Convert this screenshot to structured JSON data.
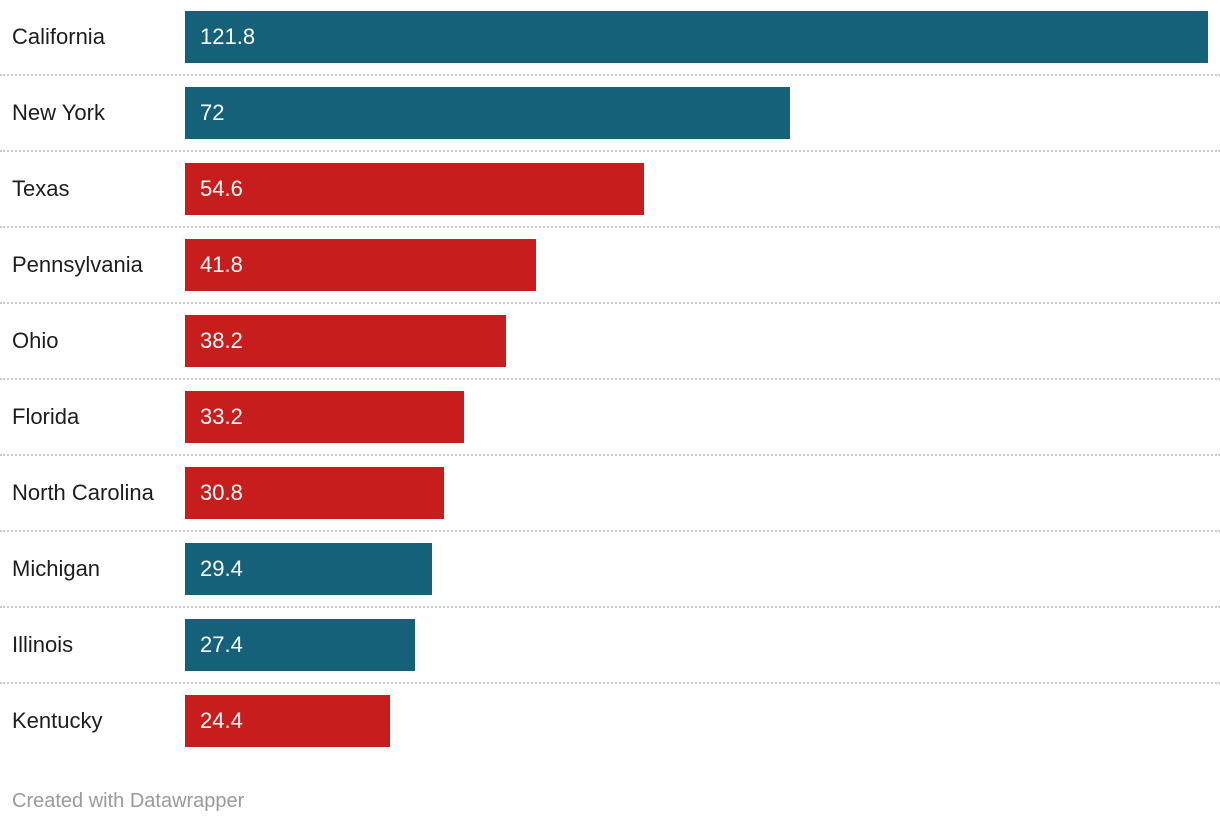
{
  "footer": {
    "text": "Created with Datawrapper"
  },
  "colors": {
    "teal": "#16617a",
    "red": "#c71e1d",
    "separator": "#cccccc",
    "label_text": "#1d1d1d",
    "value_text": "#ffffff",
    "footer_text": "#9a9a9a",
    "background": "#ffffff"
  },
  "chart_data": {
    "type": "bar",
    "orientation": "horizontal",
    "title": "",
    "xlabel": "",
    "ylabel": "",
    "categories": [
      "California",
      "New York",
      "Texas",
      "Pennsylvania",
      "Ohio",
      "Florida",
      "North Carolina",
      "Michigan",
      "Illinois",
      "Kentucky"
    ],
    "values": [
      121.8,
      72,
      54.6,
      41.8,
      38.2,
      33.2,
      30.8,
      29.4,
      27.4,
      24.4
    ],
    "value_labels": [
      "121.8",
      "72",
      "54.6",
      "41.8",
      "38.2",
      "33.2",
      "30.8",
      "29.4",
      "27.4",
      "24.4"
    ],
    "bar_colors": [
      "#16617a",
      "#16617a",
      "#c71e1d",
      "#c71e1d",
      "#c71e1d",
      "#c71e1d",
      "#c71e1d",
      "#16617a",
      "#16617a",
      "#c71e1d"
    ],
    "xlim": [
      0,
      121.8
    ],
    "grid": false,
    "legend": false,
    "value_label_position": "inside-start",
    "row_separator": "dotted",
    "attribution": "Created with Datawrapper"
  }
}
